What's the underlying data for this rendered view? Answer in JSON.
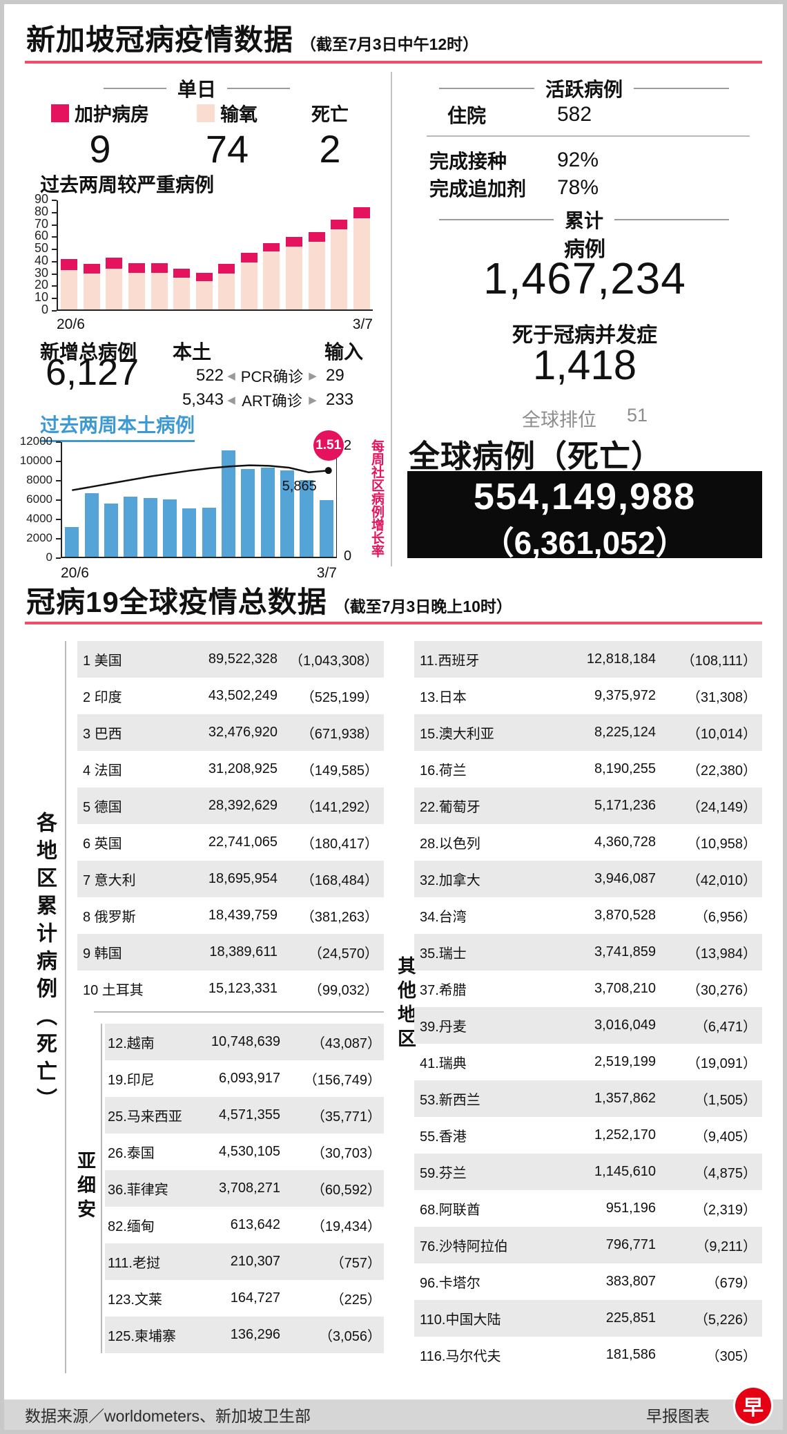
{
  "colors": {
    "accent_rule": "#ee4e68",
    "magenta": "#e5135d",
    "pale_pink": "#fadcd0",
    "bar_blue": "#54a4d8",
    "blue_heading": "#3d99d4",
    "zebra_gray": "#e9e9e9",
    "box_black": "#0b0b0b",
    "logo_red": "#e60013"
  },
  "icons": {
    "arrow_left": "◀",
    "arrow_right": "▶"
  },
  "header": {
    "title": "新加坡冠病疫情数据",
    "asof": "（截至7月3日中午12时）"
  },
  "daily": {
    "section_label": "单日",
    "items": [
      {
        "label": "加护病房",
        "value": "9",
        "swatch": "#e5135d"
      },
      {
        "label": "输氧",
        "value": "74",
        "swatch": "#fadcd0"
      },
      {
        "label": "死亡",
        "value": "2",
        "swatch": ""
      }
    ]
  },
  "severe": {
    "title": "过去两周较严重病例",
    "x_start": "20/6",
    "x_end": "3/7"
  },
  "new_cases": {
    "total_label": "新增总病例",
    "total_value": "6,127",
    "local_label": "本土",
    "imported_label": "输入",
    "rows": [
      {
        "local": "522",
        "method": "PCR确诊",
        "imported": "29"
      },
      {
        "local": "5,343",
        "method": "ART确诊",
        "imported": "233"
      }
    ]
  },
  "local_chart": {
    "title": "过去两周本土病例",
    "x_start": "20/6",
    "x_end": "3/7",
    "right_axis_top": "2",
    "right_axis_bottom": "0",
    "right_label": "每周社区病例增长率",
    "last_rate": "1.51",
    "last_bar_label": "5,865"
  },
  "active": {
    "section_label": "活跃病例",
    "rows": [
      {
        "label": "住院",
        "value": "582"
      },
      {
        "label": "完成接种",
        "value": "92%"
      },
      {
        "label": "完成追加剂",
        "value": "78%"
      }
    ]
  },
  "cumulative": {
    "section_label": "累计",
    "cases_label": "病例",
    "cases_value": "1,467,234",
    "deaths_label": "死于冠病并发症",
    "deaths_value": "1,418",
    "rank_label": "全球排位",
    "rank_value": "51"
  },
  "global_summary": {
    "title": "全球病例（死亡）",
    "cases": "554,149,988",
    "deaths": "（6,361,052）"
  },
  "section2": {
    "title": "冠病19全球疫情总数据",
    "asof": "（截至7月3日晚上10时）"
  },
  "table": {
    "axis_label": "各地区累计病例（死亡）",
    "asean_label": "亚细安",
    "others_label": "其他地区",
    "top10": [
      {
        "label": "1 美国",
        "cases": "89,522,328",
        "deaths": "（1,043,308）"
      },
      {
        "label": "2 印度",
        "cases": "43,502,249",
        "deaths": "（525,199）"
      },
      {
        "label": "3 巴西",
        "cases": "32,476,920",
        "deaths": "（671,938）"
      },
      {
        "label": "4 法国",
        "cases": "31,208,925",
        "deaths": "（149,585）"
      },
      {
        "label": "5 德国",
        "cases": "28,392,629",
        "deaths": "（141,292）"
      },
      {
        "label": "6 英国",
        "cases": "22,741,065",
        "deaths": "（180,417）"
      },
      {
        "label": "7 意大利",
        "cases": "18,695,954",
        "deaths": "（168,484）"
      },
      {
        "label": "8 俄罗斯",
        "cases": "18,439,759",
        "deaths": "（381,263）"
      },
      {
        "label": "9 韩国",
        "cases": "18,389,611",
        "deaths": "（24,570）"
      },
      {
        "label": "10 土耳其",
        "cases": "15,123,331",
        "deaths": "（99,032）"
      }
    ],
    "asean": [
      {
        "label": "12.越南",
        "cases": "10,748,639",
        "deaths": "（43,087）"
      },
      {
        "label": "19.印尼",
        "cases": "6,093,917",
        "deaths": "（156,749）"
      },
      {
        "label": "25.马来西亚",
        "cases": "4,571,355",
        "deaths": "（35,771）"
      },
      {
        "label": "26.泰国",
        "cases": "4,530,105",
        "deaths": "（30,703）"
      },
      {
        "label": "36.菲律宾",
        "cases": "3,708,271",
        "deaths": "（60,592）"
      },
      {
        "label": "82.缅甸",
        "cases": "613,642",
        "deaths": "（19,434）"
      },
      {
        "label": "111.老挝",
        "cases": "210,307",
        "deaths": "（757）"
      },
      {
        "label": "123.文莱",
        "cases": "164,727",
        "deaths": "（225）"
      },
      {
        "label": "125.柬埔寨",
        "cases": "136,296",
        "deaths": "（3,056）"
      }
    ],
    "others": [
      {
        "label": "11.西班牙",
        "cases": "12,818,184",
        "deaths": "（108,111）"
      },
      {
        "label": "13.日本",
        "cases": "9,375,972",
        "deaths": "（31,308）"
      },
      {
        "label": "15.澳大利亚",
        "cases": "8,225,124",
        "deaths": "（10,014）"
      },
      {
        "label": "16.荷兰",
        "cases": "8,190,255",
        "deaths": "（22,380）"
      },
      {
        "label": "22.葡萄牙",
        "cases": "5,171,236",
        "deaths": "（24,149）"
      },
      {
        "label": "28.以色列",
        "cases": "4,360,728",
        "deaths": "（10,958）"
      },
      {
        "label": "32.加拿大",
        "cases": "3,946,087",
        "deaths": "（42,010）"
      },
      {
        "label": "34.台湾",
        "cases": "3,870,528",
        "deaths": "（6,956）"
      },
      {
        "label": "35.瑞士",
        "cases": "3,741,859",
        "deaths": "（13,984）"
      },
      {
        "label": "37.希腊",
        "cases": "3,708,210",
        "deaths": "（30,276）"
      },
      {
        "label": "39.丹麦",
        "cases": "3,016,049",
        "deaths": "（6,471）"
      },
      {
        "label": "41.瑞典",
        "cases": "2,519,199",
        "deaths": "（19,091）"
      },
      {
        "label": "53.新西兰",
        "cases": "1,357,862",
        "deaths": "（1,505）"
      },
      {
        "label": "55.香港",
        "cases": "1,252,170",
        "deaths": "（9,405）"
      },
      {
        "label": "59.芬兰",
        "cases": "1,145,610",
        "deaths": "（4,875）"
      },
      {
        "label": "68.阿联酋",
        "cases": "951,196",
        "deaths": "（2,319）"
      },
      {
        "label": "76.沙特阿拉伯",
        "cases": "796,771",
        "deaths": "（9,211）"
      },
      {
        "label": "96.卡塔尔",
        "cases": "383,807",
        "deaths": "（679）"
      },
      {
        "label": "110.中国大陆",
        "cases": "225,851",
        "deaths": "（5,226）"
      },
      {
        "label": "116.马尔代夫",
        "cases": "181,586",
        "deaths": "（305）"
      }
    ]
  },
  "footer": {
    "source": "数据来源／worldometers、新加坡卫生部",
    "credit": "早报图表",
    "logo_char": "早"
  },
  "chart_data": [
    {
      "id": "severe_cases_last_two_weeks",
      "type": "bar",
      "stacked": true,
      "title": "过去两周较严重病例",
      "categories": [
        "20/6",
        "21/6",
        "22/6",
        "23/6",
        "24/6",
        "25/6",
        "26/6",
        "27/6",
        "28/6",
        "29/6",
        "30/6",
        "1/7",
        "2/7",
        "3/7"
      ],
      "series": [
        {
          "name": "输氧",
          "color": "#fadcd0",
          "values": [
            32,
            29,
            33,
            30,
            30,
            26,
            23,
            29,
            38,
            47,
            51,
            55,
            65,
            74
          ]
        },
        {
          "name": "加护病房",
          "color": "#e5135d",
          "values": [
            9,
            8,
            9,
            8,
            8,
            7,
            7,
            8,
            8,
            7,
            8,
            8,
            8,
            9
          ]
        }
      ],
      "ylim": [
        0,
        90
      ],
      "ytick": 10,
      "x_tick_labels_shown": [
        "20/6",
        "3/7"
      ],
      "grid": false,
      "legend_position": "above"
    },
    {
      "id": "local_cases_last_two_weeks",
      "type": "bar",
      "title": "过去两周本土病例",
      "categories": [
        "20/6",
        "21/6",
        "22/6",
        "23/6",
        "24/6",
        "25/6",
        "26/6",
        "27/6",
        "28/6",
        "29/6",
        "30/6",
        "1/7",
        "2/7",
        "3/7"
      ],
      "series": [
        {
          "name": "本土病例",
          "chart": "bar",
          "axis": "left",
          "color": "#54a4d8",
          "values": [
            3100,
            6600,
            5500,
            6200,
            6100,
            5900,
            5000,
            5100,
            11000,
            9100,
            9200,
            8900,
            7900,
            5865
          ]
        },
        {
          "name": "每周社区病例增长率",
          "chart": "line",
          "axis": "right",
          "color": "#111111",
          "values": [
            1.17,
            1.23,
            1.29,
            1.35,
            1.41,
            1.46,
            1.51,
            1.55,
            1.58,
            1.6,
            1.59,
            1.56,
            1.48,
            1.51
          ]
        }
      ],
      "ylim_left": [
        0,
        12000
      ],
      "ytick_left": 2000,
      "ylim_right": [
        0,
        2
      ],
      "right_axis_tick_labels": [
        "2",
        "0"
      ],
      "annotations": [
        {
          "text": "1.51",
          "style": "pink-circle",
          "target": "line-end"
        },
        {
          "text": "5,865",
          "target": "last-bar"
        }
      ],
      "x_tick_labels_shown": [
        "20/6",
        "3/7"
      ],
      "grid": false
    }
  ]
}
